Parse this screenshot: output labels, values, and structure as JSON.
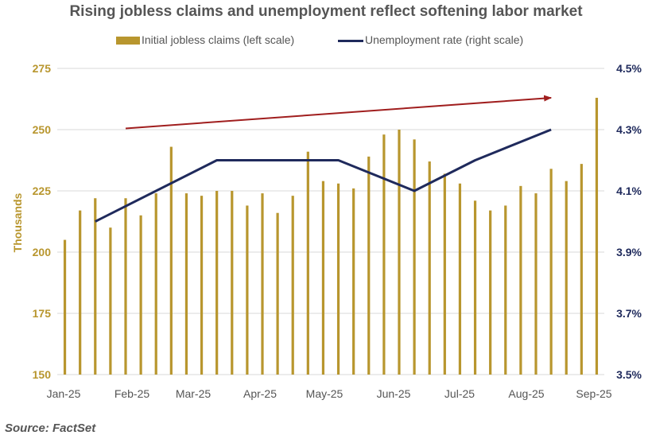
{
  "chart_data": {
    "type": "bar",
    "title": "Rising jobless claims and unemployment reflect softening labor market",
    "legend": {
      "bar_label": "Initial jobless claims (left scale)",
      "line_label": "Unemployment rate (right scale)",
      "placement": "top-center"
    },
    "ylabel": "Thousands",
    "left_axis": {
      "ylim": [
        150,
        275
      ],
      "ticks": [
        "150",
        "175",
        "200",
        "225",
        "250",
        "275"
      ]
    },
    "right_axis": {
      "ylim": [
        3.5,
        4.5
      ],
      "ticks": [
        "3.5%",
        "3.7%",
        "3.9%",
        "4.1%",
        "4.3%",
        "4.5%"
      ]
    },
    "x_ticks": [
      "Jan-25",
      "Feb-25",
      "Mar-25",
      "Apr-25",
      "May-25",
      "Jun-25",
      "Jul-25",
      "Aug-25",
      "Sep-25"
    ],
    "weeks": 36,
    "series": [
      {
        "name": "Initial jobless claims",
        "kind": "bar",
        "axis": "left",
        "values": [
          205,
          217,
          222,
          210,
          222,
          215,
          224,
          243,
          224,
          223,
          225,
          225,
          219,
          224,
          216,
          223,
          241,
          229,
          228,
          226,
          239,
          248,
          250,
          246,
          237,
          232,
          228,
          221,
          217,
          219,
          227,
          224,
          234,
          229,
          236,
          263
        ]
      },
      {
        "name": "Unemployment rate",
        "kind": "line",
        "axis": "right",
        "points": [
          [
            2,
            4.0
          ],
          [
            10,
            4.2
          ],
          [
            18,
            4.2
          ],
          [
            23,
            4.1
          ],
          [
            27,
            4.2
          ],
          [
            32,
            4.3
          ]
        ]
      }
    ],
    "trend_arrow": {
      "from": [
        4,
        250.5
      ],
      "to": [
        32,
        263
      ]
    },
    "grid": true,
    "colors": {
      "bars": "#B8962E",
      "line": "#1F2A5C",
      "arrow": "#A01E1E",
      "grid": "#D9D9D9"
    }
  },
  "source": "Source: FactSet"
}
